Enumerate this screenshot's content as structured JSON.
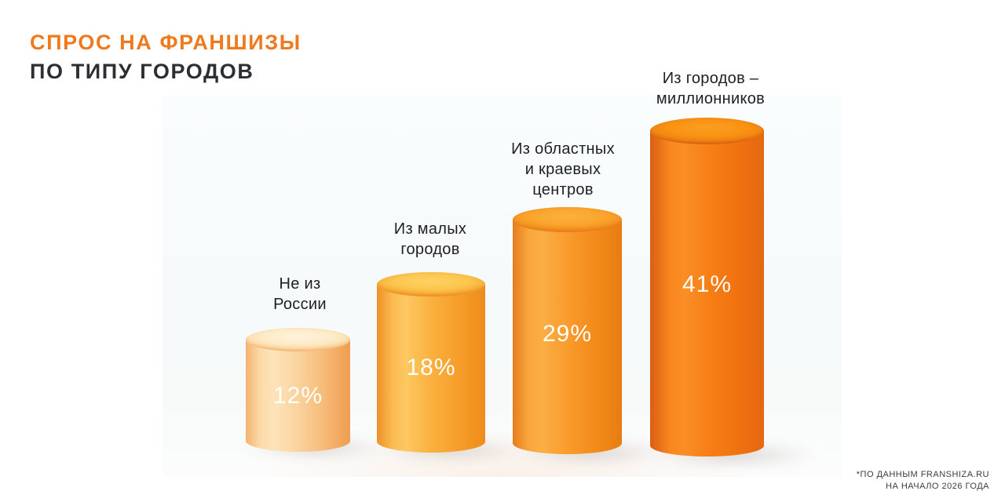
{
  "title": {
    "line1": "СПРОС НА ФРАНШИЗЫ",
    "line2": "ПО ТИПУ ГОРОДОВ"
  },
  "footnote": "*ПО ДАННЫМ FRANSHIZA.RU\nНА НАЧАЛО 2026 ГОДА",
  "colors": {
    "title_accent": "#EF7A1E",
    "title_dark": "#2D2F33",
    "panel_background": "#F7FBFC",
    "value_text": "#FFFFFF",
    "bar_base_colors": [
      "#FAD39E",
      "#FAAF3D",
      "#F99A2B",
      "#F67C13"
    ]
  },
  "bars": [
    {
      "label": "Не из\nРоссии",
      "value": "12%"
    },
    {
      "label": "Из малых\nгородов",
      "value": "18%"
    },
    {
      "label": "Из областных\nи краевых\nцентров",
      "value": "29%"
    },
    {
      "label": "Из городов –\nмиллионников",
      "value": "41%"
    }
  ],
  "chart_data": {
    "type": "bar",
    "title": "Спрос на франшизы по типу городов",
    "categories": [
      "Не из России",
      "Из малых городов",
      "Из областных и краевых центров",
      "Из городов – миллионников"
    ],
    "values": [
      12,
      18,
      29,
      41
    ],
    "unit": "%",
    "value_labels": [
      "12%",
      "18%",
      "29%",
      "41%"
    ],
    "xlabel": "",
    "ylabel": "",
    "ylim": [
      0,
      45
    ],
    "grid": false,
    "legend": false,
    "style": "3d-cylinder, orange gradient, darker = larger value",
    "source_note": "*ПО ДАННЫМ FRANSHIZA.RU НА НАЧАЛО 2026 ГОДА"
  }
}
